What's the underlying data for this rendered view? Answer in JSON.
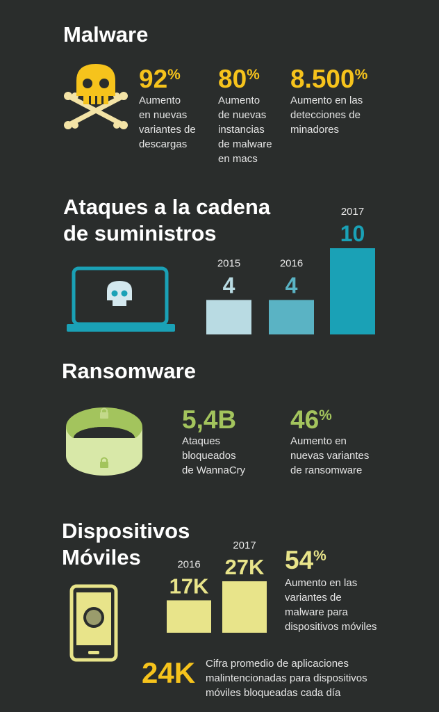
{
  "malware": {
    "heading": "Malware",
    "stats": [
      {
        "value": "92",
        "unit": "%",
        "desc": "Aumento\nen nuevas\nvariantes de\ndescargas"
      },
      {
        "value": "80",
        "unit": "%",
        "desc": "Aumento\nde nuevas\ninstancias\nde malware\nen macs"
      },
      {
        "value": "8.500",
        "unit": "%",
        "desc": "Aumento en las\ndetecciones de\nminadores"
      }
    ],
    "icon": "skull-crossbones-icon",
    "color": "#f6c31c"
  },
  "supply_chain": {
    "heading_line1": "Ataques a la cadena",
    "heading_line2": "de suministros",
    "icon": "laptop-skull-icon",
    "color": "#1aa1b6"
  },
  "ransomware": {
    "heading": "Ransomware",
    "icon": "ring-lock-icon",
    "color": "#a3c45d",
    "stats": [
      {
        "value": "5,4B",
        "unit": "",
        "desc": "Ataques\nbloqueados\nde WannaCry"
      },
      {
        "value": "46",
        "unit": "%",
        "desc": "Aumento en\nnuevas variantes\nde ransomware"
      }
    ]
  },
  "mobile": {
    "heading_line1": "Dispositivos",
    "heading_line2": "Móviles",
    "icon": "smartphone-icon",
    "color": "#e8e48a",
    "stat": {
      "value": "54",
      "unit": "%",
      "desc": "Aumento en las\nvariantes de\nmalware para\ndispositivos móviles"
    },
    "footer": {
      "value": "24K",
      "desc": "Cifra promedio de aplicaciones\nmalintencionadas para dispositivos\nmóviles bloqueadas cada día"
    }
  },
  "chart_data": [
    {
      "type": "bar",
      "categories": [
        "2015",
        "2016",
        "2017"
      ],
      "values": [
        4,
        4,
        10
      ],
      "value_labels": [
        "4",
        "4",
        "10"
      ],
      "colors": [
        "#b9dbe3",
        "#5ab3c4",
        "#1aa1b6"
      ]
    },
    {
      "type": "bar",
      "categories": [
        "2016",
        "2017"
      ],
      "values": [
        17,
        27
      ],
      "value_labels": [
        "17K",
        "27K"
      ],
      "colors": [
        "#e8e48a",
        "#e8e48a"
      ]
    }
  ]
}
